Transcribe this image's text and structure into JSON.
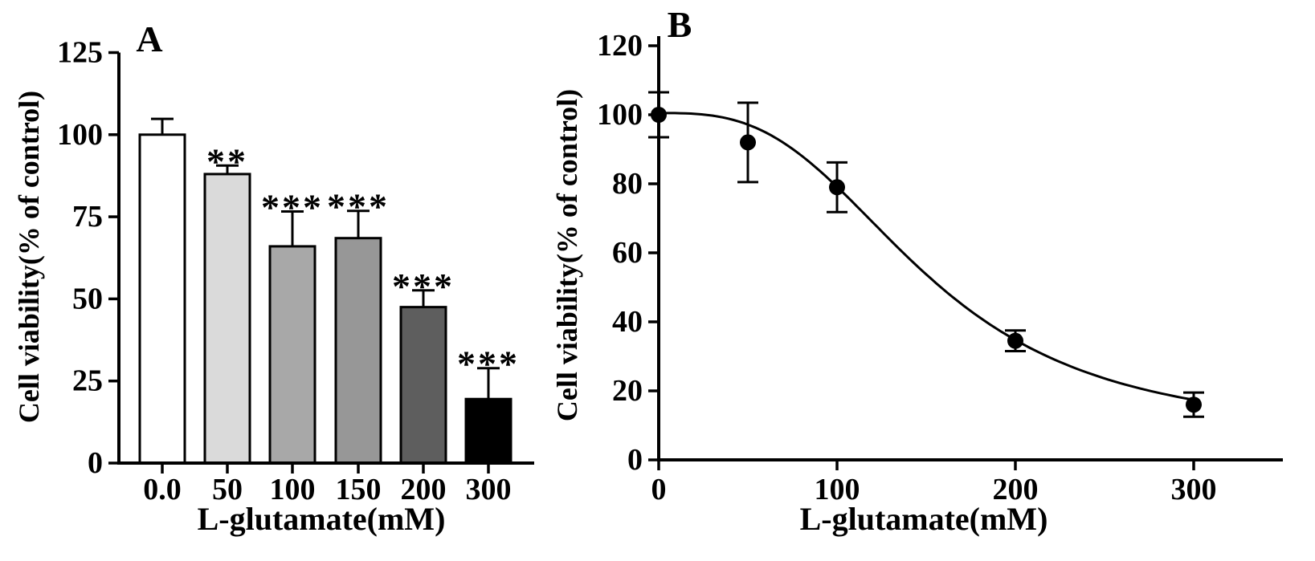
{
  "figure": {
    "background": "#ffffff",
    "ink_color": "#000000"
  },
  "chart_data": [
    {
      "type": "bar",
      "panel_label": "A",
      "xlabel": "L-glutamate(mM)",
      "ylabel": "Cell viability(% of control)",
      "categories": [
        "0.0",
        "50",
        "100",
        "150",
        "200",
        "300"
      ],
      "values": [
        100,
        88,
        66,
        68.5,
        47.5,
        19.5
      ],
      "errors_plus": [
        4.8,
        2.6,
        10.6,
        8.3,
        5.1,
        9.4
      ],
      "significance": [
        "",
        "**",
        "***",
        "***",
        "***",
        "***"
      ],
      "bar_fills": [
        "#ffffff",
        "#dadada",
        "#a8a8a8",
        "#979797",
        "#5e5e5e",
        "#000000"
      ],
      "bar_outline": "#000000",
      "ylim": [
        0,
        125
      ],
      "y_ticks": [
        0,
        25,
        50,
        75,
        100,
        125
      ],
      "grid": false,
      "legend": null
    },
    {
      "type": "scatter",
      "panel_label": "B",
      "xlabel": "L-glutamate(mM)",
      "ylabel": "Cell viability(% of control)",
      "x": [
        0,
        50,
        100,
        200,
        300
      ],
      "y": [
        100,
        92,
        79,
        34.5,
        16
      ],
      "errors": [
        6.5,
        11.5,
        7.2,
        3,
        3.5
      ],
      "marker": "filled-circle",
      "marker_color": "#000000",
      "fit_curve": {
        "model": "sigmoidal-dose-response",
        "top": 100.5,
        "bottom": 7,
        "ec50": 150,
        "hill": 3
      },
      "xlim": [
        0,
        350
      ],
      "ylim": [
        0,
        120
      ],
      "x_ticks": [
        0,
        100,
        200,
        300
      ],
      "y_ticks": [
        0,
        20,
        40,
        60,
        80,
        100,
        120
      ],
      "grid": false,
      "legend": null
    }
  ]
}
